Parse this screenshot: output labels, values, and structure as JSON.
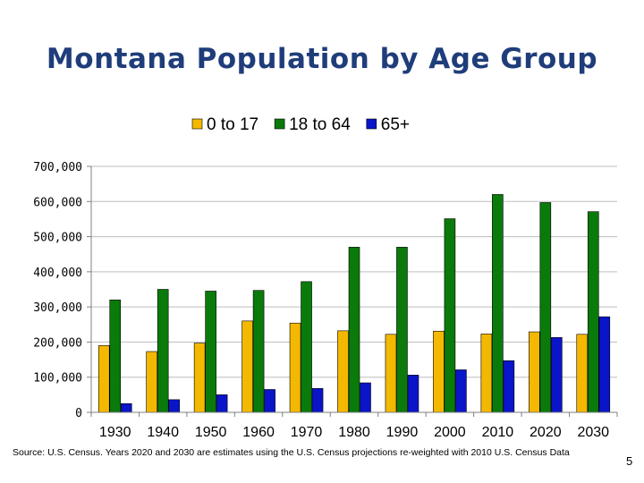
{
  "slide": {
    "title": "Montana Population by Age Group",
    "source": "Source: U.S. Census.  Years 2020 and 2030 are estimates using the U.S. Census projections re-weighted with 2010 U.S. Census Data",
    "page_number": "5"
  },
  "chart_data": {
    "type": "bar",
    "title": "Montana Population by Age Group",
    "categories": [
      "1930",
      "1940",
      "1950",
      "1960",
      "1970",
      "1980",
      "1990",
      "2000",
      "2010",
      "2020",
      "2030"
    ],
    "series": [
      {
        "name": "0 to 17",
        "color": "#f5b800",
        "values": [
          190000,
          173000,
          197000,
          260000,
          254000,
          232000,
          222000,
          231000,
          223000,
          229000,
          222000
        ]
      },
      {
        "name": "18 to 64",
        "color": "#0a7a0a",
        "values": [
          320000,
          350000,
          345000,
          347000,
          372000,
          470000,
          470000,
          551000,
          620000,
          597000,
          571000
        ]
      },
      {
        "name": "65+",
        "color": "#0a14c8",
        "values": [
          25000,
          36000,
          50000,
          65000,
          68000,
          84000,
          106000,
          121000,
          147000,
          213000,
          272000
        ]
      }
    ],
    "y_ticks": [
      "0",
      "100,000",
      "200,000",
      "300,000",
      "400,000",
      "500,000",
      "600,000",
      "700,000"
    ],
    "ylim": [
      0,
      700000
    ],
    "grid": true,
    "legend_position": "top-center",
    "xlabel": "",
    "ylabel": ""
  }
}
